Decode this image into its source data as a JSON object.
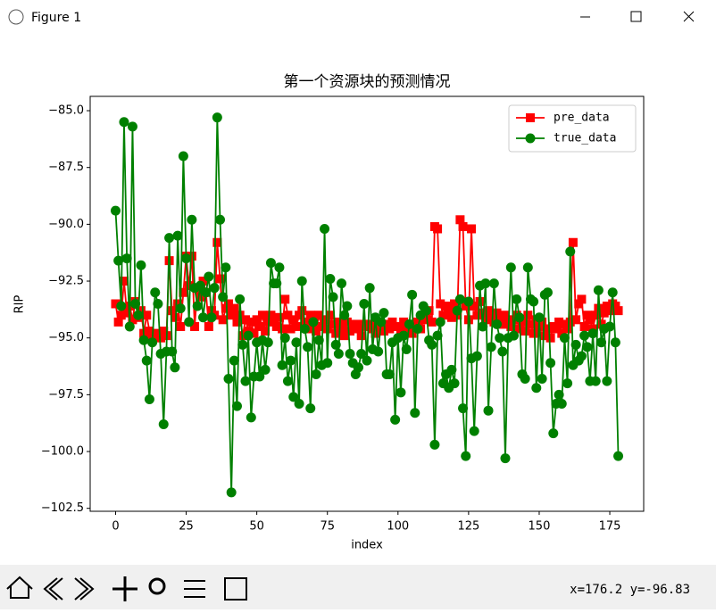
{
  "window": {
    "title": "Figure 1"
  },
  "status": {
    "coords": "x=176.2 y=-96.83"
  },
  "chart_data": {
    "type": "line",
    "title": "第一个资源块的预测情况",
    "x_label": "index",
    "y_label": "RIP",
    "x": [
      0,
      1,
      2,
      3,
      4,
      5,
      6,
      7,
      8,
      9,
      10,
      11,
      12,
      13,
      14,
      15,
      16,
      17,
      18,
      19,
      20,
      21,
      22,
      23,
      24,
      25,
      26,
      27,
      28,
      29,
      30,
      31,
      32,
      33,
      34,
      35,
      36,
      37,
      38,
      39,
      40,
      41,
      42,
      43,
      44,
      45,
      46,
      47,
      48,
      49,
      50,
      51,
      52,
      53,
      54,
      55,
      56,
      57,
      58,
      59,
      60,
      61,
      62,
      63,
      64,
      65,
      66,
      67,
      68,
      69,
      70,
      71,
      72,
      73,
      74,
      75,
      76,
      77,
      78,
      79,
      80,
      81,
      82,
      83,
      84,
      85,
      86,
      87,
      88,
      89,
      90,
      91,
      92,
      93,
      94,
      95,
      96,
      97,
      98,
      99,
      100,
      101,
      102,
      103,
      104,
      105,
      106,
      107,
      108,
      109,
      110,
      111,
      112,
      113,
      114,
      115,
      116,
      117,
      118,
      119,
      120,
      121,
      122,
      123,
      124,
      125,
      126,
      127,
      128,
      129,
      130,
      131,
      132,
      133,
      134,
      135,
      136,
      137,
      138,
      139,
      140,
      141,
      142,
      143,
      144,
      145,
      146,
      147,
      148,
      149,
      150,
      151,
      152,
      153,
      154,
      155,
      156,
      157,
      158,
      159,
      160,
      161,
      162,
      163,
      164,
      165,
      166,
      167,
      168,
      169,
      170,
      171,
      172,
      173,
      174,
      175,
      176,
      177,
      178
    ],
    "series": [
      {
        "name": "pre_data",
        "color": "#ff0000",
        "marker": "square",
        "values": [
          -93.5,
          -94.3,
          -94.0,
          -92.5,
          -93.9,
          -93.6,
          -94.2,
          -93.4,
          -94.1,
          -93.8,
          -94.8,
          -94.0,
          -94.7,
          -95.0,
          -94.8,
          -94.9,
          -95.0,
          -94.7,
          -94.9,
          -91.6,
          -93.8,
          -94.1,
          -93.5,
          -94.5,
          -93.0,
          -91.4,
          -92.7,
          -91.4,
          -94.5,
          -92.8,
          -93.2,
          -92.5,
          -93.0,
          -94.5,
          -93.8,
          -94.0,
          -90.8,
          -92.4,
          -94.2,
          -93.7,
          -93.5,
          -94.0,
          -93.7,
          -94.3,
          -94.0,
          -94.9,
          -94.2,
          -94.7,
          -94.3,
          -94.8,
          -94.2,
          -94.5,
          -94.0,
          -94.7,
          -94.3,
          -94.0,
          -94.2,
          -94.5,
          -94.1,
          -94.6,
          -93.3,
          -94.0,
          -94.6,
          -94.2,
          -94.5,
          -94.0,
          -93.8,
          -94.3,
          -94.6,
          -94.0,
          -94.4,
          -94.7,
          -94.0,
          -94.5,
          -94.2,
          -94.6,
          -94.0,
          -94.4,
          -94.8,
          -94.3,
          -94.6,
          -94.9,
          -94.3,
          -94.7,
          -94.5,
          -94.4,
          -94.6,
          -94.9,
          -94.4,
          -94.5,
          -94.4,
          -94.6,
          -94.8,
          -94.3,
          -94.5,
          -94.7,
          -94.4,
          -94.6,
          -94.3,
          -94.5,
          -94.5,
          -94.7,
          -94.3,
          -94.6,
          -94.4,
          -94.8,
          -94.5,
          -94.3,
          -94.6,
          -94.2,
          -94.0,
          -93.8,
          -94.3,
          -90.1,
          -90.2,
          -93.5,
          -94.0,
          -93.6,
          -93.8,
          -94.1,
          -93.5,
          -94.0,
          -89.8,
          -90.1,
          -93.6,
          -94.2,
          -90.2,
          -93.6,
          -94.0,
          -93.4,
          -93.9,
          -94.2,
          -93.8,
          -94.0,
          -94.3,
          -93.9,
          -94.1,
          -94.4,
          -94.0,
          -94.3,
          -94.5,
          -94.2,
          -94.0,
          -94.6,
          -94.3,
          -94.7,
          -94.0,
          -94.4,
          -94.8,
          -94.2,
          -94.5,
          -94.3,
          -94.9,
          -94.6,
          -95.0,
          -94.5,
          -94.6,
          -94.3,
          -94.8,
          -94.4,
          -94.6,
          -94.3,
          -90.8,
          -94.2,
          -93.5,
          -93.3,
          -94.5,
          -94.0,
          -94.2,
          -94.6,
          -94.0,
          -93.7,
          -94.4,
          -93.9,
          -93.6,
          -93.8,
          -93.5,
          -93.6,
          -93.8
        ]
      },
      {
        "name": "true_data",
        "color": "#008000",
        "marker": "circle",
        "values": [
          -89.4,
          -91.6,
          -93.6,
          -85.5,
          -91.5,
          -94.5,
          -85.7,
          -93.5,
          -94.0,
          -91.8,
          -95.1,
          -96.0,
          -97.7,
          -95.2,
          -93.0,
          -93.5,
          -95.7,
          -98.8,
          -95.6,
          -90.6,
          -95.6,
          -96.3,
          -90.5,
          -93.7,
          -87.0,
          -91.5,
          -94.3,
          -89.8,
          -92.8,
          -93.6,
          -92.7,
          -94.1,
          -93.0,
          -92.3,
          -94.1,
          -92.8,
          -85.3,
          -89.8,
          -93.2,
          -91.9,
          -96.8,
          -101.8,
          -96.0,
          -98.0,
          -93.3,
          -95.3,
          -96.9,
          -94.9,
          -98.5,
          -96.7,
          -95.2,
          -96.7,
          -95.1,
          -96.4,
          -95.2,
          -91.7,
          -92.6,
          -92.6,
          -91.9,
          -96.2,
          -95.0,
          -96.9,
          -96.0,
          -97.6,
          -95.2,
          -97.9,
          -92.5,
          -94.6,
          -95.4,
          -98.1,
          -94.3,
          -96.6,
          -95.1,
          -96.2,
          -90.2,
          -96.1,
          -92.4,
          -93.2,
          -95.3,
          -95.7,
          -92.6,
          -94.0,
          -93.6,
          -95.7,
          -96.1,
          -96.6,
          -96.3,
          -95.7,
          -93.5,
          -96.0,
          -92.8,
          -95.5,
          -94.1,
          -95.6,
          -94.3,
          -93.9,
          -96.6,
          -96.6,
          -95.2,
          -98.6,
          -95.0,
          -97.4,
          -94.9,
          -95.5,
          -94.4,
          -93.1,
          -98.3,
          -94.6,
          -94.0,
          -93.6,
          -93.8,
          -95.1,
          -95.3,
          -99.7,
          -94.9,
          -94.3,
          -97.0,
          -96.6,
          -97.2,
          -96.4,
          -97.0,
          -93.8,
          -93.3,
          -98.1,
          -100.2,
          -93.4,
          -95.9,
          -99.1,
          -95.8,
          -92.7,
          -94.5,
          -92.6,
          -98.2,
          -95.4,
          -92.6,
          -94.4,
          -95.0,
          -95.6,
          -100.3,
          -95.0,
          -91.9,
          -94.9,
          -93.3,
          -94.1,
          -96.6,
          -96.8,
          -91.9,
          -93.3,
          -93.4,
          -97.2,
          -94.1,
          -96.8,
          -93.1,
          -93.0,
          -96.1,
          -99.2,
          -97.9,
          -97.5,
          -97.9,
          -95.0,
          -97.0,
          -91.2,
          -96.2,
          -95.3,
          -96.0,
          -95.8,
          -94.9,
          -95.4,
          -96.9,
          -94.8,
          -96.9,
          -92.9,
          -95.2,
          -94.6,
          -96.9,
          -94.5,
          -93.0,
          -95.2,
          -100.2
        ]
      }
    ],
    "xlim": [
      -9,
      187
    ],
    "xticks": [
      0,
      25,
      50,
      75,
      100,
      125,
      150,
      175
    ],
    "ylim": [
      -102.63,
      -84.37
    ],
    "yticks": [
      {
        "value": -85,
        "label": "−85.0"
      },
      {
        "value": -87.5,
        "label": "−87.5"
      },
      {
        "value": -90,
        "label": "−90.0"
      },
      {
        "value": -92.5,
        "label": "−92.5"
      },
      {
        "value": -95,
        "label": "−95.0"
      },
      {
        "value": -97.5,
        "label": "−97.5"
      },
      {
        "value": -100,
        "label": "−100.0"
      },
      {
        "value": -102.5,
        "label": "−102.5"
      }
    ],
    "legend": "upper right"
  }
}
